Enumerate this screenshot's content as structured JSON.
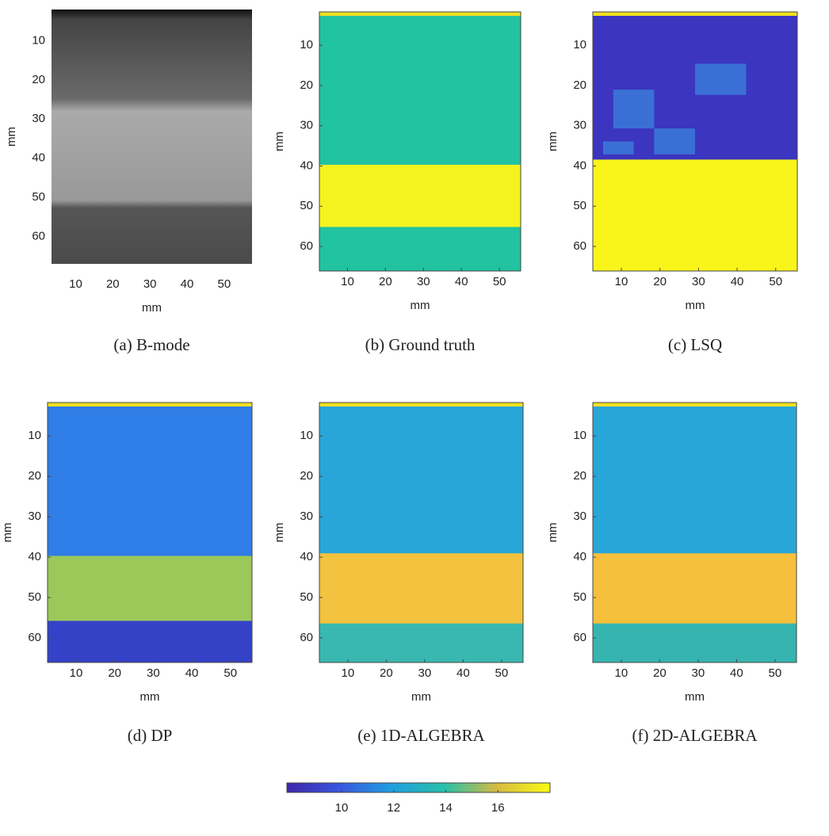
{
  "panels": [
    {
      "caption": "(a) B-mode",
      "xlabel": "mm",
      "ylabel": "mm",
      "xticks": [
        10,
        20,
        30,
        40,
        50
      ],
      "yticks": [
        10,
        20,
        30,
        40,
        50,
        60
      ],
      "xlim": [
        3.5,
        57.5
      ],
      "ylim": [
        2,
        67
      ]
    },
    {
      "caption": "(b) Ground truth",
      "xlabel": "mm",
      "ylabel": "mm",
      "xticks": [
        10,
        20,
        30,
        40,
        50
      ],
      "yticks": [
        10,
        20,
        30,
        40,
        50,
        60
      ],
      "xlim": [
        2.6,
        55.6
      ],
      "ylim": [
        1.7,
        66.1
      ]
    },
    {
      "caption": "(c) LSQ",
      "xlabel": "mm",
      "ylabel": "mm",
      "xticks": [
        10,
        20,
        30,
        40,
        50
      ],
      "yticks": [
        10,
        20,
        30,
        40,
        50,
        60
      ],
      "xlim": [
        2.6,
        55.6
      ],
      "ylim": [
        1.7,
        66.1
      ]
    },
    {
      "caption": "(d) DP",
      "xlabel": "mm",
      "ylabel": "mm",
      "xticks": [
        10,
        20,
        30,
        40,
        50
      ],
      "yticks": [
        10,
        20,
        30,
        40,
        50,
        60
      ],
      "xlim": [
        2.6,
        55.6
      ],
      "ylim": [
        1.7,
        66.1
      ]
    },
    {
      "caption": "(e) 1D-ALGEBRA",
      "xlabel": "mm",
      "ylabel": "mm",
      "xticks": [
        10,
        20,
        30,
        40,
        50
      ],
      "yticks": [
        10,
        20,
        30,
        40,
        50,
        60
      ],
      "xlim": [
        2.6,
        55.6
      ],
      "ylim": [
        1.7,
        66.1
      ]
    },
    {
      "caption": "(f) 2D-ALGEBRA",
      "xlabel": "mm",
      "ylabel": "mm",
      "xticks": [
        10,
        20,
        30,
        40,
        50
      ],
      "yticks": [
        10,
        20,
        30,
        40,
        50,
        60
      ],
      "xlim": [
        2.6,
        55.6
      ],
      "ylim": [
        1.7,
        66.1
      ]
    }
  ],
  "colorbar": {
    "ticks": [
      10,
      12,
      14,
      16
    ],
    "lim": [
      7.9,
      18
    ]
  }
}
